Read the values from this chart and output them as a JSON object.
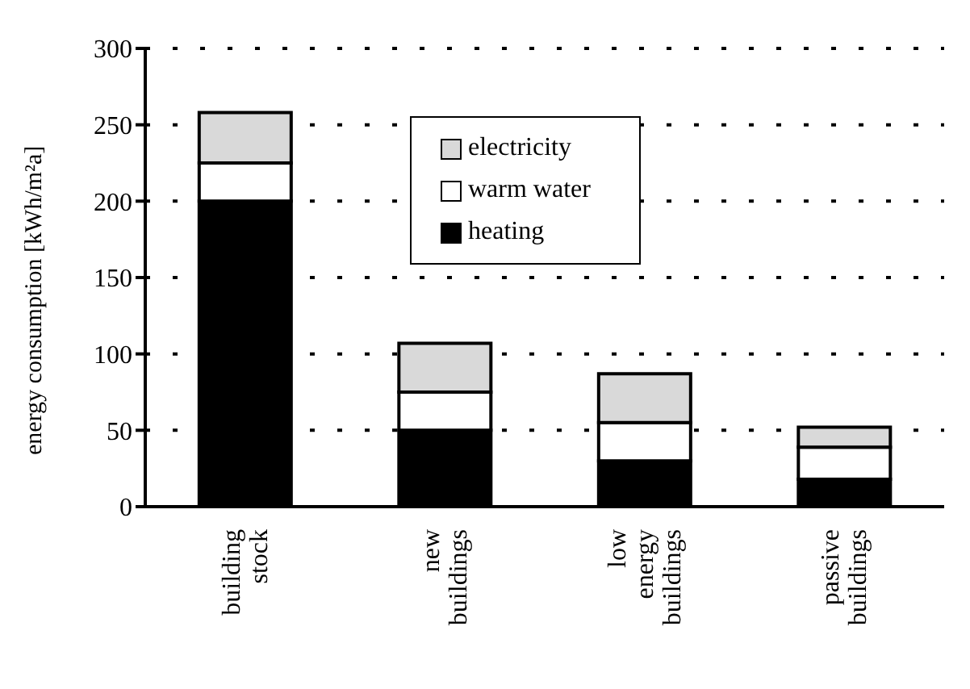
{
  "chart_data": {
    "type": "bar",
    "stacked": true,
    "ylabel": "energy consumption [kWh/m²a]",
    "categories": [
      "building stock",
      "new buildings",
      "low energy buildings",
      "passive buildings"
    ],
    "series": [
      {
        "name": "heating",
        "color": "#000000",
        "values": [
          200,
          50,
          30,
          18
        ]
      },
      {
        "name": "warm water",
        "color": "#ffffff",
        "values": [
          25,
          25,
          25,
          21
        ]
      },
      {
        "name": "electricity",
        "color": "#d9d9d9",
        "values": [
          33,
          32,
          32,
          13
        ]
      }
    ],
    "ylim": [
      0,
      300
    ],
    "yticks": [
      0,
      50,
      100,
      150,
      200,
      250,
      300
    ],
    "grid": "y",
    "legend": "top right"
  }
}
